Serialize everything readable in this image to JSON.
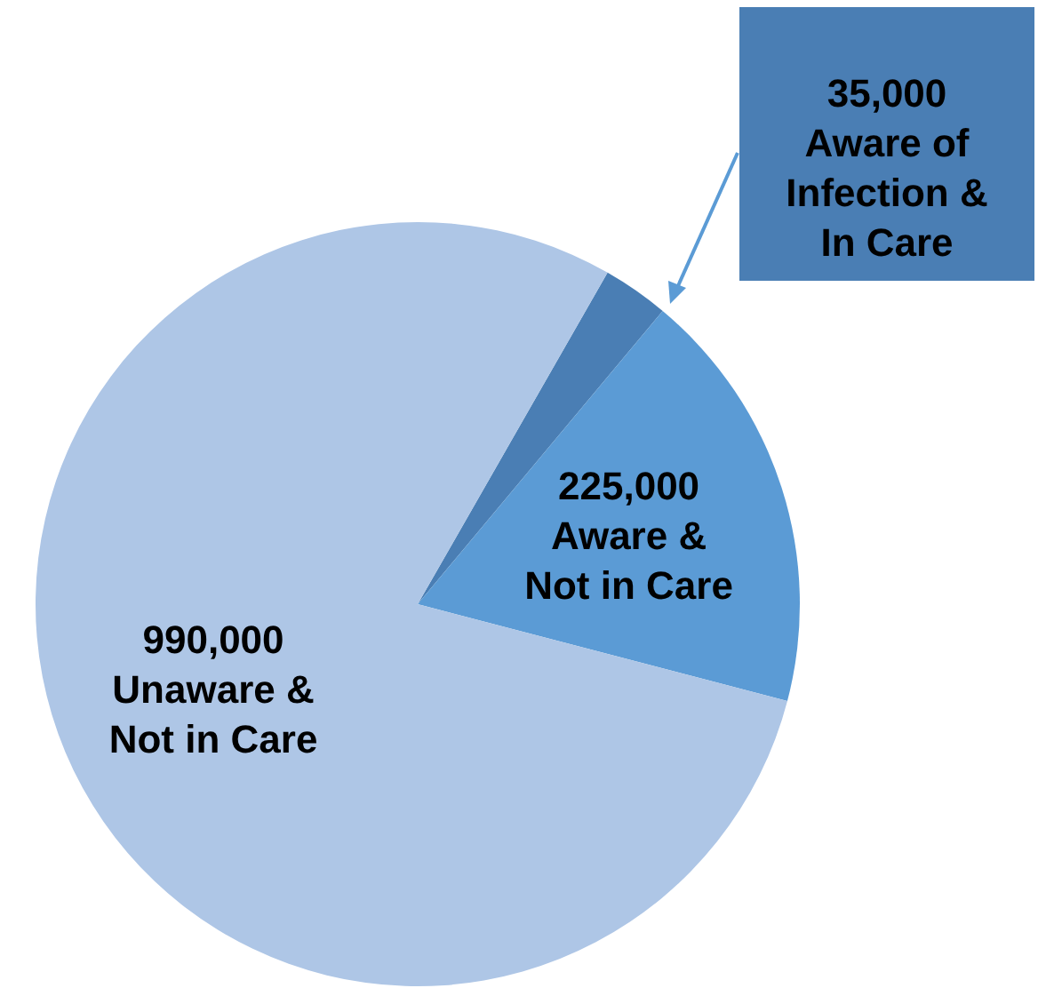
{
  "chart_data": {
    "type": "pie",
    "categories": [
      "Aware of\nInfection &\nIn Care",
      "Aware &\nNot in Care",
      "Unaware &\nNot in Care"
    ],
    "values": [
      35000,
      225000,
      990000
    ],
    "value_labels": [
      "35,000",
      "225,000",
      "990,000"
    ],
    "colors": [
      "#4a7eb4",
      "#5b9bd5",
      "#aec6e6"
    ]
  }
}
